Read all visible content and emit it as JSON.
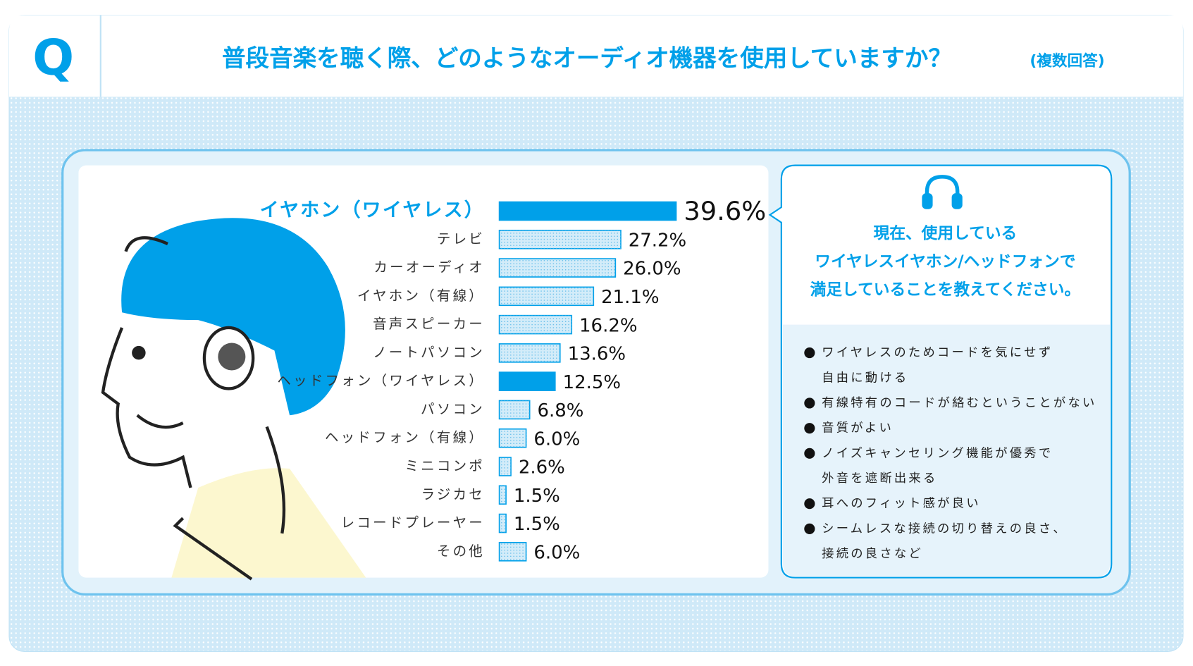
{
  "header": {
    "q": "Q"
  },
  "chart_data": {
    "type": "bar",
    "title": "普段音楽を聴く際、どのようなオーディオ機器を使用していますか？",
    "subtitle": "(複数回答)",
    "categories": [
      "イヤホン（ワイヤレス）",
      "テレビ",
      "カーオーディオ",
      "イヤホン（有線）",
      "音声スピーカー",
      "ノートパソコン",
      "ヘッドフォン（ワイヤレス）",
      "パソコン",
      "ヘッドフォン（有線）",
      "ミニコンポ",
      "ラジカセ",
      "レコードプレーヤー",
      "その他"
    ],
    "values": [
      39.6,
      27.2,
      26.0,
      21.1,
      16.2,
      13.6,
      12.5,
      6.8,
      6.0,
      2.6,
      1.5,
      1.5,
      6.0
    ],
    "value_labels": [
      "39.6%",
      "27.2%",
      "26.0%",
      "21.1%",
      "16.2%",
      "13.6%",
      "12.5%",
      "6.8%",
      "6.0%",
      "2.6%",
      "1.5%",
      "1.5%",
      "6.0%"
    ],
    "colors": [
      "#00a0e9",
      "#d3ecf9",
      "#d3ecf9",
      "#d3ecf9",
      "#d3ecf9",
      "#d3ecf9",
      "#00a0e9",
      "#d3ecf9",
      "#d3ecf9",
      "#d3ecf9",
      "#d3ecf9",
      "#d3ecf9",
      "#d3ecf9"
    ]
  },
  "side_panel": {
    "question": [
      "現在、使用している",
      "ワイヤレスイヤホン/ヘッドフォンで",
      "満足していることを教えてください。"
    ],
    "items": [
      [
        "ワイヤレスのためコードを気にせず",
        "自由に動ける"
      ],
      [
        "有線特有のコードが絡むということがない"
      ],
      [
        "音質がよい"
      ],
      [
        "ノイズキャンセリング機能が優秀で",
        "外音を遮断出来る"
      ],
      [
        "耳へのフィット感が良い"
      ],
      [
        "シームレスな接続の切り替えの良さ、",
        "接続の良さなど"
      ]
    ]
  }
}
